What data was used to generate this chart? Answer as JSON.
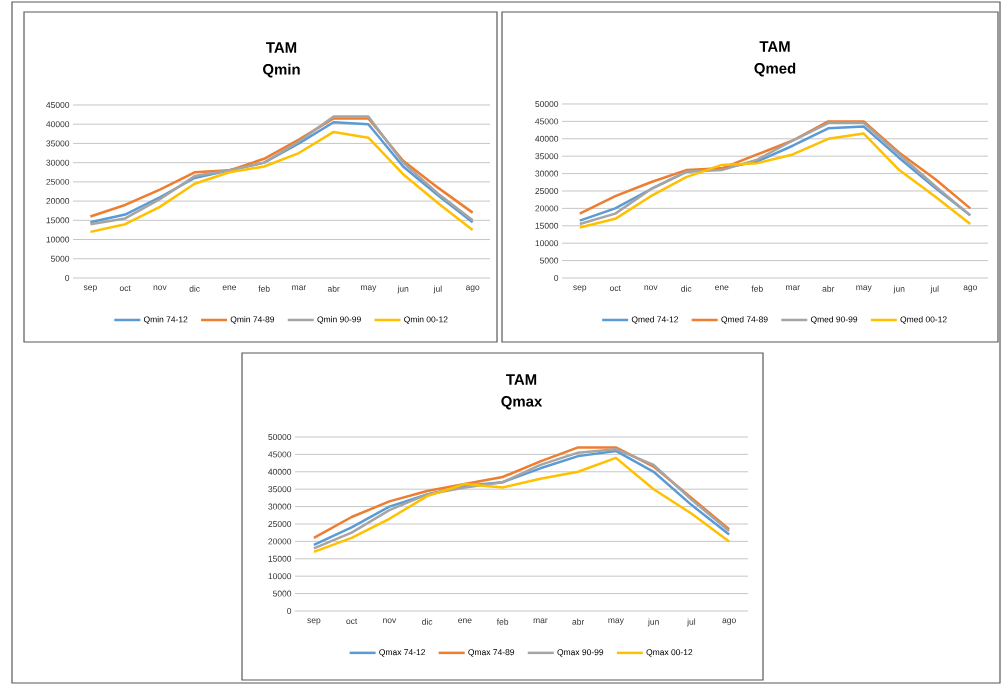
{
  "chart_data": [
    {
      "type": "line",
      "title": "TAM",
      "subtitle": "Qmin",
      "categories": [
        "sep",
        "oct",
        "nov",
        "dic",
        "ene",
        "feb",
        "mar",
        "abr",
        "may",
        "jun",
        "jul",
        "ago"
      ],
      "ylim": [
        0,
        45000
      ],
      "yticks": [
        0,
        5000,
        10000,
        15000,
        20000,
        25000,
        30000,
        35000,
        40000,
        45000
      ],
      "grid": "y",
      "legend": "bottom",
      "marker": "none",
      "series": [
        {
          "name": "Qmin 74-12",
          "color": "#5b9bd5",
          "values": [
            14500,
            16500,
            21000,
            26000,
            28000,
            30000,
            35000,
            40500,
            40000,
            29000,
            21500,
            14500
          ]
        },
        {
          "name": "Qmin 74-89",
          "color": "#ed7d31",
          "values": [
            16000,
            19000,
            23000,
            27500,
            28000,
            31000,
            36000,
            41500,
            41500,
            30500,
            23500,
            17000
          ]
        },
        {
          "name": "Qmin 90-99",
          "color": "#a5a5a5",
          "values": [
            14000,
            15500,
            20500,
            26500,
            28000,
            30000,
            35500,
            42000,
            42000,
            30000,
            22000,
            15000
          ]
        },
        {
          "name": "Qmin 00-12",
          "color": "#ffc000",
          "values": [
            12000,
            14000,
            18500,
            24500,
            27500,
            29000,
            32500,
            38000,
            36500,
            27000,
            19500,
            12500
          ]
        }
      ]
    },
    {
      "type": "line",
      "title": "TAM",
      "subtitle": "Qmed",
      "categories": [
        "sep",
        "oct",
        "nov",
        "dic",
        "ene",
        "feb",
        "mar",
        "abr",
        "may",
        "jun",
        "jul",
        "ago"
      ],
      "ylim": [
        0,
        50000
      ],
      "yticks": [
        0,
        5000,
        10000,
        15000,
        20000,
        25000,
        30000,
        35000,
        40000,
        45000,
        50000
      ],
      "grid": "y",
      "legend": "bottom",
      "marker": "none",
      "series": [
        {
          "name": "Qmed 74-12",
          "color": "#5b9bd5",
          "values": [
            16500,
            20000,
            25500,
            30500,
            31500,
            33500,
            38000,
            43000,
            43500,
            34500,
            26000,
            18000
          ]
        },
        {
          "name": "Qmed 74-89",
          "color": "#ed7d31",
          "values": [
            18500,
            23500,
            27500,
            31000,
            31500,
            35500,
            39500,
            45000,
            45000,
            36000,
            28500,
            20000
          ]
        },
        {
          "name": "Qmed 90-99",
          "color": "#a5a5a5",
          "values": [
            15500,
            18500,
            25500,
            30500,
            31000,
            34000,
            39500,
            44500,
            44500,
            35500,
            26500,
            18000
          ]
        },
        {
          "name": "Qmed 00-12",
          "color": "#ffc000",
          "values": [
            14500,
            17000,
            23500,
            29000,
            32500,
            33000,
            35500,
            40000,
            41500,
            31000,
            23500,
            15500
          ]
        }
      ]
    },
    {
      "type": "line",
      "title": "TAM",
      "subtitle": "Qmax",
      "categories": [
        "sep",
        "oct",
        "nov",
        "dic",
        "ene",
        "feb",
        "mar",
        "abr",
        "may",
        "jun",
        "jul",
        "ago"
      ],
      "ylim": [
        0,
        50000
      ],
      "yticks": [
        0,
        5000,
        10000,
        15000,
        20000,
        25000,
        30000,
        35000,
        40000,
        45000,
        50000
      ],
      "grid": "y",
      "legend": "bottom",
      "marker": "none",
      "series": [
        {
          "name": "Qmax 74-12",
          "color": "#5b9bd5",
          "values": [
            19000,
            24000,
            30000,
            33500,
            36000,
            37000,
            41000,
            44500,
            46000,
            40000,
            30500,
            22000
          ]
        },
        {
          "name": "Qmax 74-89",
          "color": "#ed7d31",
          "values": [
            21000,
            27000,
            31500,
            34500,
            36500,
            38500,
            43000,
            47000,
            47000,
            41500,
            32500,
            23500
          ]
        },
        {
          "name": "Qmax 90-99",
          "color": "#a5a5a5",
          "values": [
            18000,
            22500,
            29000,
            33500,
            35500,
            37000,
            42000,
            45500,
            46500,
            42000,
            32000,
            23000
          ]
        },
        {
          "name": "Qmax 00-12",
          "color": "#ffc000",
          "values": [
            17000,
            21000,
            26500,
            33000,
            36500,
            35500,
            38000,
            40000,
            44000,
            35000,
            28000,
            20000
          ]
        }
      ]
    }
  ]
}
